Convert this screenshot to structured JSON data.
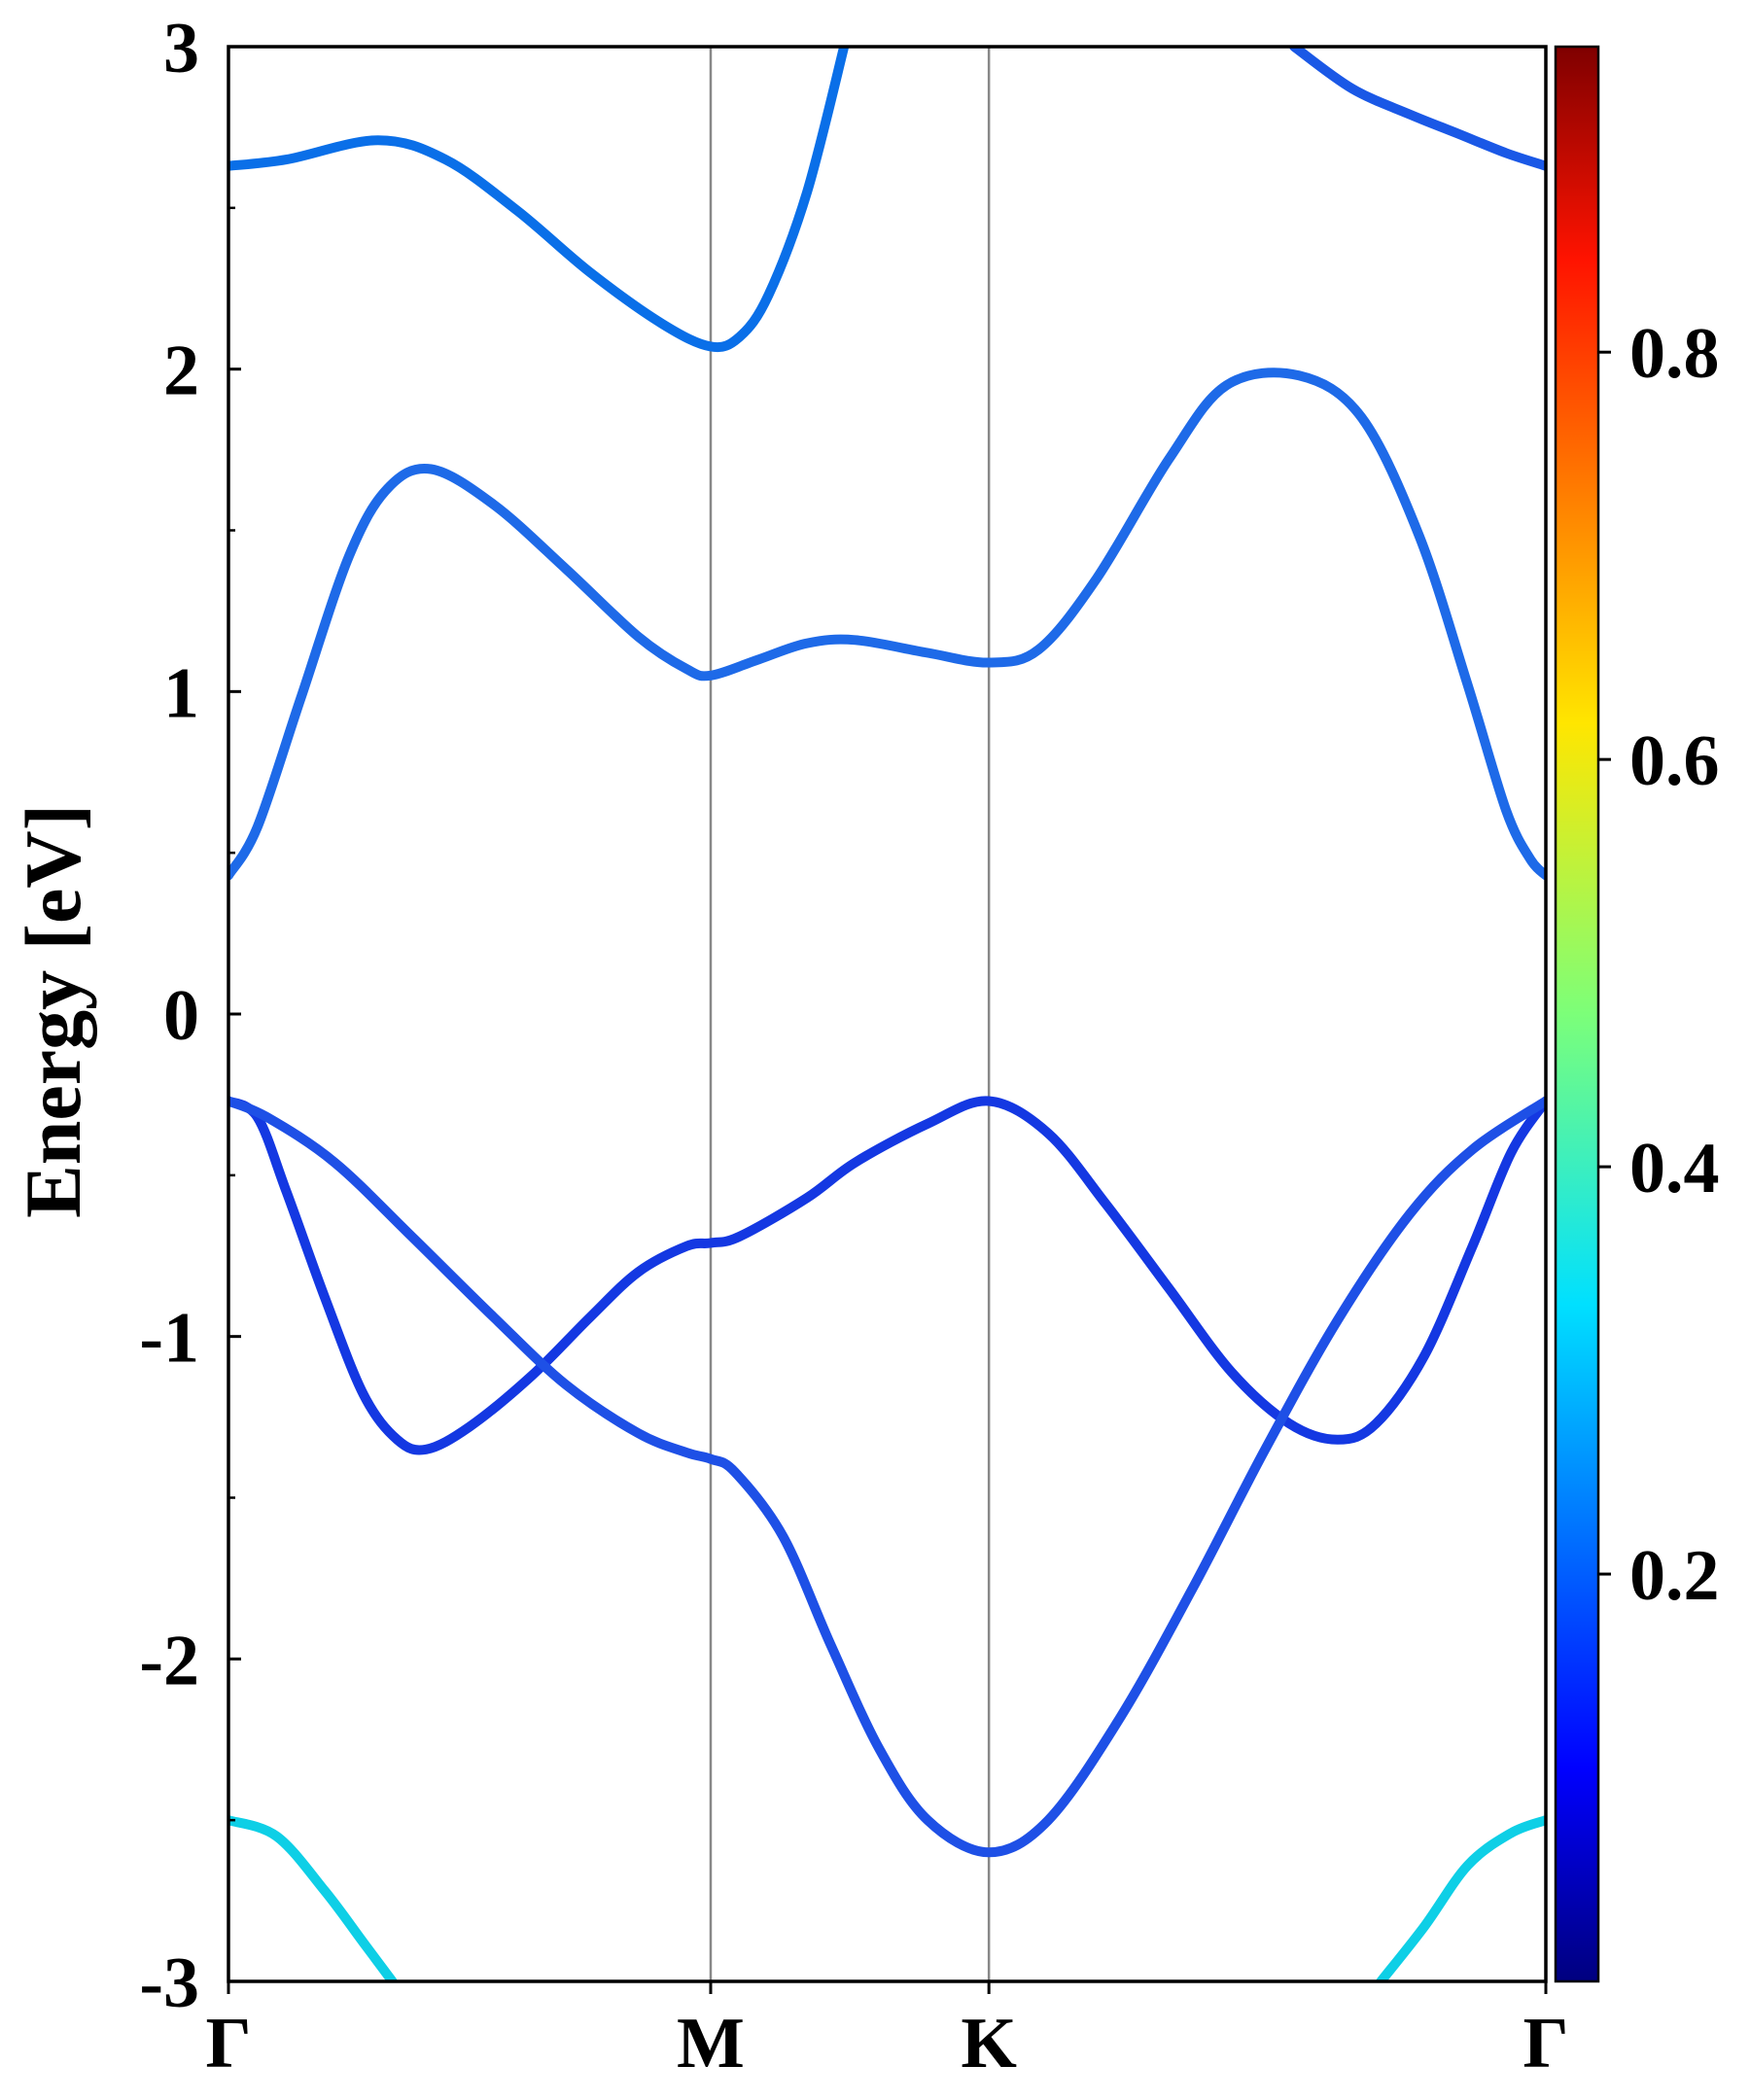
{
  "chart_data": {
    "type": "line",
    "title": "",
    "ylabel": "Energy [eV]",
    "xlabel": "",
    "ylim": [
      -3,
      3
    ],
    "yticks": [
      "-3",
      "-2",
      "-1",
      "0",
      "1",
      "2",
      "3"
    ],
    "x_ticks": [
      {
        "label": "Γ",
        "pos": 0
      },
      {
        "label": "M",
        "pos": 1
      },
      {
        "label": "K",
        "pos": 1.577
      },
      {
        "label": "Γ",
        "pos": 2.732
      }
    ],
    "path_range": [
      0,
      2.732
    ],
    "colorbar": {
      "colormap": "jet",
      "range": [
        0,
        0.95
      ],
      "ticks": [
        "0.2",
        "0.4",
        "0.6",
        "0.8"
      ]
    },
    "series": [
      {
        "color": "#0a6fe8",
        "weight": 0.22,
        "points": [
          [
            0,
            2.63
          ],
          [
            0.12,
            2.65
          ],
          [
            0.31,
            2.71
          ],
          [
            0.45,
            2.65
          ],
          [
            0.6,
            2.49
          ],
          [
            0.75,
            2.3
          ],
          [
            0.9,
            2.14
          ],
          [
            1.0,
            2.07
          ],
          [
            1.06,
            2.1
          ],
          [
            1.12,
            2.23
          ],
          [
            1.2,
            2.55
          ],
          [
            1.28,
            3.02
          ]
        ]
      },
      {
        "color": "#1a58e6",
        "weight": 0.18,
        "points": [
          [
            2.21,
            3.0
          ],
          [
            2.33,
            2.87
          ],
          [
            2.45,
            2.79
          ],
          [
            2.55,
            2.73
          ],
          [
            2.65,
            2.67
          ],
          [
            2.732,
            2.63
          ]
        ]
      },
      {
        "color": "#1e6ae8",
        "weight": 0.23,
        "points": [
          [
            0,
            0.43
          ],
          [
            0.06,
            0.58
          ],
          [
            0.15,
            0.98
          ],
          [
            0.25,
            1.42
          ],
          [
            0.33,
            1.63
          ],
          [
            0.42,
            1.69
          ],
          [
            0.55,
            1.58
          ],
          [
            0.7,
            1.38
          ],
          [
            0.85,
            1.17
          ],
          [
            0.95,
            1.07
          ],
          [
            1.0,
            1.05
          ],
          [
            1.1,
            1.1
          ],
          [
            1.2,
            1.15
          ],
          [
            1.3,
            1.16
          ],
          [
            1.45,
            1.12
          ],
          [
            1.577,
            1.09
          ],
          [
            1.68,
            1.13
          ],
          [
            1.8,
            1.35
          ],
          [
            1.95,
            1.72
          ],
          [
            2.07,
            1.95
          ],
          [
            2.22,
            1.98
          ],
          [
            2.35,
            1.85
          ],
          [
            2.47,
            1.48
          ],
          [
            2.57,
            1.02
          ],
          [
            2.65,
            0.63
          ],
          [
            2.7,
            0.48
          ],
          [
            2.732,
            0.43
          ]
        ]
      },
      {
        "color": "#1438e2",
        "weight": 0.13,
        "points": [
          [
            0,
            -0.27
          ],
          [
            0.06,
            -0.32
          ],
          [
            0.12,
            -0.55
          ],
          [
            0.2,
            -0.88
          ],
          [
            0.28,
            -1.18
          ],
          [
            0.35,
            -1.32
          ],
          [
            0.41,
            -1.35
          ],
          [
            0.5,
            -1.28
          ],
          [
            0.63,
            -1.12
          ],
          [
            0.75,
            -0.94
          ],
          [
            0.85,
            -0.8
          ],
          [
            0.95,
            -0.72
          ],
          [
            1.0,
            -0.71
          ],
          [
            1.06,
            -0.69
          ],
          [
            1.2,
            -0.57
          ],
          [
            1.3,
            -0.46
          ],
          [
            1.45,
            -0.34
          ],
          [
            1.577,
            -0.27
          ],
          [
            1.7,
            -0.37
          ],
          [
            1.82,
            -0.59
          ],
          [
            1.95,
            -0.85
          ],
          [
            2.08,
            -1.11
          ],
          [
            2.2,
            -1.27
          ],
          [
            2.3,
            -1.32
          ],
          [
            2.38,
            -1.27
          ],
          [
            2.48,
            -1.06
          ],
          [
            2.58,
            -0.72
          ],
          [
            2.66,
            -0.43
          ],
          [
            2.732,
            -0.27
          ]
        ]
      },
      {
        "color": "#1e50e6",
        "weight": 0.17,
        "points": [
          [
            0,
            -0.27
          ],
          [
            0.08,
            -0.32
          ],
          [
            0.22,
            -0.46
          ],
          [
            0.38,
            -0.69
          ],
          [
            0.55,
            -0.94
          ],
          [
            0.7,
            -1.15
          ],
          [
            0.85,
            -1.3
          ],
          [
            0.95,
            -1.36
          ],
          [
            1.0,
            -1.38
          ],
          [
            1.05,
            -1.42
          ],
          [
            1.15,
            -1.62
          ],
          [
            1.25,
            -1.96
          ],
          [
            1.35,
            -2.28
          ],
          [
            1.45,
            -2.5
          ],
          [
            1.577,
            -2.6
          ],
          [
            1.7,
            -2.5
          ],
          [
            1.85,
            -2.18
          ],
          [
            2.0,
            -1.78
          ],
          [
            2.15,
            -1.35
          ],
          [
            2.3,
            -0.95
          ],
          [
            2.45,
            -0.62
          ],
          [
            2.58,
            -0.42
          ],
          [
            2.732,
            -0.27
          ]
        ]
      },
      {
        "color": "#0ecfe6",
        "weight": 0.36,
        "points": [
          [
            0,
            -2.5
          ],
          [
            0.1,
            -2.55
          ],
          [
            0.2,
            -2.72
          ],
          [
            0.28,
            -2.88
          ],
          [
            0.34,
            -3.0
          ]
        ]
      },
      {
        "color": "#0ecfe6",
        "weight": 0.36,
        "points": [
          [
            2.39,
            -3.0
          ],
          [
            2.48,
            -2.83
          ],
          [
            2.57,
            -2.64
          ],
          [
            2.66,
            -2.54
          ],
          [
            2.732,
            -2.5
          ]
        ]
      }
    ]
  }
}
